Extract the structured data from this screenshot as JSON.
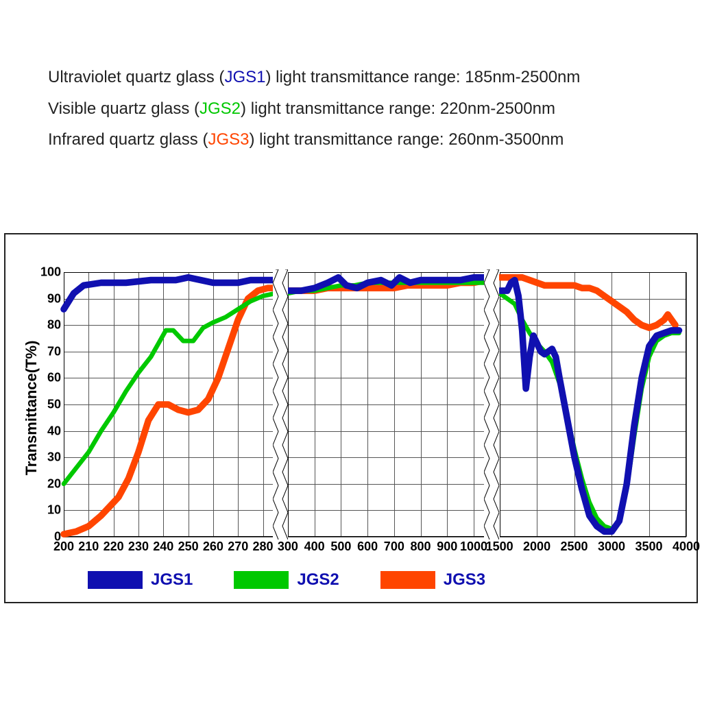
{
  "text": {
    "line1_pre": "Ultraviolet quartz glass (",
    "line1_tag": "JGS1",
    "line1_post": ") light transmittance range: 185nm-2500nm",
    "line2_pre": "Visible quartz glass (",
    "line2_tag": "JGS2",
    "line2_post": ") light transmittance range: 220nm-2500nm",
    "line3_pre": "Infrared quartz glass (",
    "line3_tag": "JGS3",
    "line3_post": ") light transmittance range: 260nm-3500nm"
  },
  "chart": {
    "ylabel": "Transmittance(T%)",
    "ylim": [
      0,
      100
    ],
    "yticks": [
      0,
      10,
      20,
      30,
      40,
      50,
      60,
      70,
      80,
      90,
      100
    ],
    "grid_color": "#555555",
    "background_color": "#ffffff",
    "panel_widths_pct": [
      34,
      32,
      30
    ],
    "panel_gap_pct": 2,
    "colors": {
      "jgs1": "#1010b0",
      "jgs2": "#00c800",
      "jgs3": "#ff4500"
    },
    "line_widths": {
      "jgs1": 3.2,
      "jgs2": 2.2,
      "jgs3": 3.2
    },
    "panels": [
      {
        "xlim": [
          200,
          285
        ],
        "xticks": [
          200,
          210,
          220,
          230,
          240,
          250,
          260,
          270,
          280
        ],
        "series": {
          "jgs1": [
            [
              200,
              86
            ],
            [
              204,
              92
            ],
            [
              208,
              95
            ],
            [
              215,
              96
            ],
            [
              225,
              96
            ],
            [
              235,
              97
            ],
            [
              245,
              97
            ],
            [
              250,
              98
            ],
            [
              255,
              97
            ],
            [
              260,
              96
            ],
            [
              265,
              96
            ],
            [
              270,
              96
            ],
            [
              275,
              97
            ],
            [
              280,
              97
            ],
            [
              285,
              97
            ]
          ],
          "jgs2": [
            [
              200,
              20
            ],
            [
              205,
              26
            ],
            [
              210,
              32
            ],
            [
              215,
              40
            ],
            [
              220,
              47
            ],
            [
              225,
              55
            ],
            [
              230,
              62
            ],
            [
              235,
              68
            ],
            [
              238,
              73
            ],
            [
              241,
              78
            ],
            [
              244,
              78
            ],
            [
              248,
              74
            ],
            [
              252,
              74
            ],
            [
              256,
              79
            ],
            [
              260,
              81
            ],
            [
              265,
              83
            ],
            [
              270,
              86
            ],
            [
              275,
              89
            ],
            [
              280,
              91
            ],
            [
              285,
              92
            ]
          ],
          "jgs3": [
            [
              200,
              1
            ],
            [
              205,
              2
            ],
            [
              210,
              4
            ],
            [
              215,
              8
            ],
            [
              218,
              11
            ],
            [
              222,
              15
            ],
            [
              226,
              22
            ],
            [
              230,
              32
            ],
            [
              234,
              44
            ],
            [
              238,
              50
            ],
            [
              242,
              50
            ],
            [
              246,
              48
            ],
            [
              250,
              47
            ],
            [
              254,
              48
            ],
            [
              258,
              52
            ],
            [
              262,
              60
            ],
            [
              266,
              71
            ],
            [
              270,
              82
            ],
            [
              274,
              90
            ],
            [
              278,
              93
            ],
            [
              282,
              94
            ],
            [
              285,
              94
            ]
          ]
        }
      },
      {
        "xlim": [
          300,
          1050
        ],
        "xticks": [
          300,
          400,
          500,
          600,
          700,
          800,
          900,
          1000
        ],
        "series": {
          "jgs1": [
            [
              300,
              93
            ],
            [
              350,
              93
            ],
            [
              400,
              94
            ],
            [
              450,
              96
            ],
            [
              490,
              98
            ],
            [
              520,
              95
            ],
            [
              560,
              94
            ],
            [
              600,
              96
            ],
            [
              650,
              97
            ],
            [
              690,
              95
            ],
            [
              720,
              98
            ],
            [
              760,
              96
            ],
            [
              800,
              97
            ],
            [
              850,
              97
            ],
            [
              900,
              97
            ],
            [
              950,
              97
            ],
            [
              1000,
              98
            ],
            [
              1050,
              98
            ]
          ],
          "jgs2": [
            [
              300,
              92
            ],
            [
              350,
              93
            ],
            [
              400,
              93
            ],
            [
              450,
              94
            ],
            [
              500,
              95
            ],
            [
              550,
              95
            ],
            [
              600,
              96
            ],
            [
              650,
              96
            ],
            [
              700,
              96
            ],
            [
              750,
              96
            ],
            [
              800,
              96
            ],
            [
              850,
              96
            ],
            [
              900,
              96
            ],
            [
              950,
              96
            ],
            [
              1000,
              96
            ],
            [
              1050,
              96
            ]
          ],
          "jgs3": [
            [
              300,
              93
            ],
            [
              350,
              93
            ],
            [
              400,
              93
            ],
            [
              450,
              94
            ],
            [
              500,
              94
            ],
            [
              550,
              94
            ],
            [
              600,
              94
            ],
            [
              650,
              94
            ],
            [
              700,
              94
            ],
            [
              750,
              95
            ],
            [
              800,
              95
            ],
            [
              850,
              95
            ],
            [
              900,
              95
            ],
            [
              950,
              96
            ],
            [
              1000,
              96
            ],
            [
              1050,
              97
            ]
          ]
        }
      },
      {
        "xlim": [
          1500,
          4000
        ],
        "xticks": [
          1500,
          2000,
          2500,
          3000,
          3500,
          4000
        ],
        "series": {
          "jgs1": [
            [
              1500,
              93
            ],
            [
              1600,
              93
            ],
            [
              1650,
              96
            ],
            [
              1700,
              97
            ],
            [
              1750,
              91
            ],
            [
              1800,
              78
            ],
            [
              1850,
              56
            ],
            [
              1900,
              68
            ],
            [
              1950,
              76
            ],
            [
              2000,
              73
            ],
            [
              2050,
              70
            ],
            [
              2100,
              69
            ],
            [
              2150,
              70
            ],
            [
              2200,
              71
            ],
            [
              2250,
              68
            ],
            [
              2300,
              60
            ],
            [
              2400,
              45
            ],
            [
              2500,
              30
            ],
            [
              2600,
              18
            ],
            [
              2700,
              8
            ],
            [
              2800,
              4
            ],
            [
              2900,
              2
            ],
            [
              3000,
              2
            ],
            [
              3100,
              6
            ],
            [
              3200,
              20
            ],
            [
              3300,
              42
            ],
            [
              3400,
              60
            ],
            [
              3500,
              72
            ],
            [
              3600,
              76
            ],
            [
              3700,
              77
            ],
            [
              3800,
              78
            ],
            [
              3900,
              78
            ]
          ],
          "jgs2": [
            [
              1500,
              92
            ],
            [
              1600,
              90
            ],
            [
              1700,
              88
            ],
            [
              1800,
              82
            ],
            [
              1900,
              77
            ],
            [
              2000,
              73
            ],
            [
              2100,
              70
            ],
            [
              2200,
              66
            ],
            [
              2300,
              58
            ],
            [
              2400,
              46
            ],
            [
              2500,
              33
            ],
            [
              2600,
              22
            ],
            [
              2700,
              13
            ],
            [
              2800,
              7
            ],
            [
              2900,
              4
            ],
            [
              3000,
              3
            ],
            [
              3100,
              6
            ],
            [
              3200,
              18
            ],
            [
              3300,
              38
            ],
            [
              3400,
              56
            ],
            [
              3500,
              68
            ],
            [
              3600,
              74
            ],
            [
              3700,
              76
            ],
            [
              3800,
              77
            ],
            [
              3900,
              77
            ]
          ],
          "jgs3": [
            [
              1500,
              98
            ],
            [
              1600,
              98
            ],
            [
              1700,
              98
            ],
            [
              1800,
              98
            ],
            [
              1900,
              97
            ],
            [
              2000,
              96
            ],
            [
              2100,
              95
            ],
            [
              2200,
              95
            ],
            [
              2300,
              95
            ],
            [
              2400,
              95
            ],
            [
              2500,
              95
            ],
            [
              2600,
              94
            ],
            [
              2700,
              94
            ],
            [
              2800,
              93
            ],
            [
              2900,
              91
            ],
            [
              3000,
              89
            ],
            [
              3100,
              87
            ],
            [
              3200,
              85
            ],
            [
              3300,
              82
            ],
            [
              3400,
              80
            ],
            [
              3500,
              79
            ],
            [
              3600,
              80
            ],
            [
              3700,
              82
            ],
            [
              3750,
              84
            ],
            [
              3800,
              82
            ],
            [
              3850,
              80
            ]
          ]
        }
      }
    ],
    "legend": [
      {
        "label": "JGS1",
        "color": "#1010b0"
      },
      {
        "label": "JGS2",
        "color": "#00c800"
      },
      {
        "label": "JGS3",
        "color": "#ff4500"
      }
    ]
  }
}
